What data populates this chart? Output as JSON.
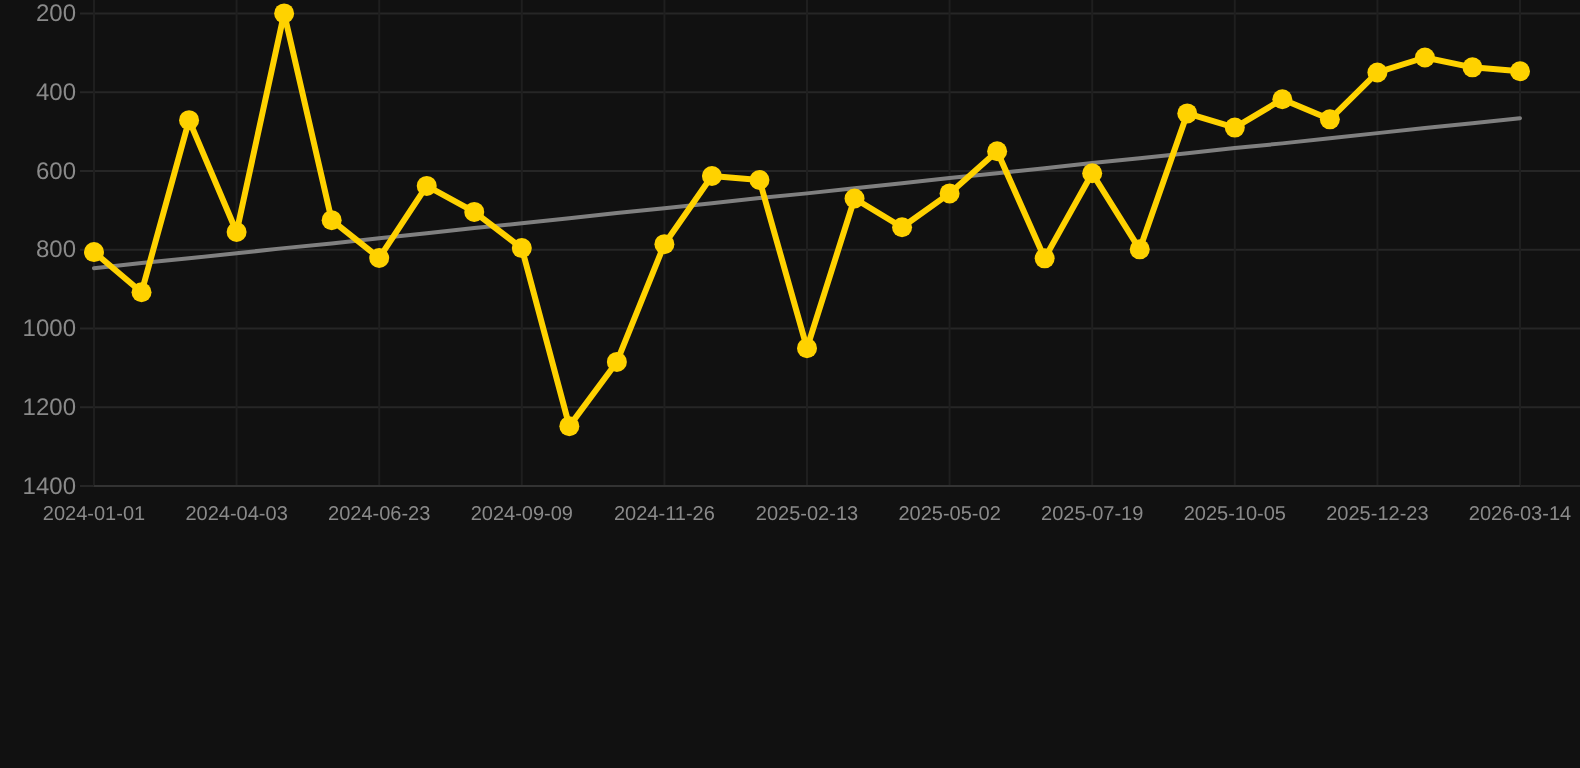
{
  "chart_data": {
    "type": "line",
    "categories": [
      "2024-01-01",
      null,
      null,
      "2024-04-03",
      null,
      null,
      "2024-06-23",
      null,
      null,
      "2024-09-09",
      null,
      null,
      "2024-11-26",
      null,
      null,
      "2025-02-13",
      null,
      null,
      "2025-05-02",
      null,
      null,
      "2025-07-19",
      null,
      null,
      "2025-10-05",
      null,
      null,
      "2025-12-23",
      null,
      null,
      "2026-03-14"
    ],
    "series": [
      {
        "color": "#ffd200",
        "marker": "circle",
        "values": [
          806,
          908,
          471,
          755,
          200,
          725,
          821,
          638,
          704,
          796,
          1248,
          1085,
          786,
          613,
          623,
          1050,
          670,
          743,
          657,
          550,
          822,
          606,
          799,
          454,
          490,
          418,
          469,
          350,
          312,
          337,
          347
        ]
      },
      {
        "color": "#808080",
        "marker": "none",
        "values": [
          847,
          834,
          822,
          809,
          796,
          784,
          771,
          758,
          745,
          733,
          720,
          707,
          695,
          682,
          669,
          657,
          644,
          631,
          618,
          606,
          593,
          580,
          568,
          555,
          542,
          530,
          517,
          504,
          491,
          479,
          466
        ]
      }
    ],
    "ylim": [
      1400,
      200
    ],
    "yticks": [
      200,
      400,
      600,
      800,
      1000,
      1200,
      1400
    ],
    "grid": true,
    "line_style": "solid"
  }
}
